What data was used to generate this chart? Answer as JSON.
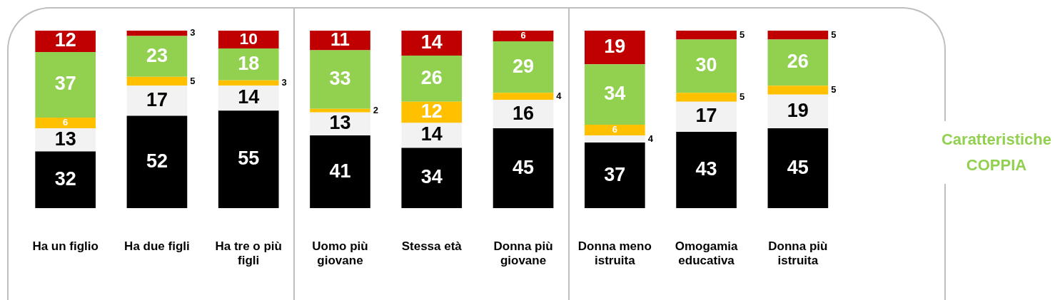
{
  "chart_data": {
    "type": "bar",
    "stacked": true,
    "title": "Caratteristiche COPPIA",
    "categories": [
      "Ha un figlio",
      "Ha due figli",
      "Ha tre o più figli",
      "Uomo più giovane",
      "Stessa età",
      "Donna più giovane",
      "Donna meno istruita",
      "Omogamia educativa",
      "Donna più istruita"
    ],
    "series": [
      {
        "color": "#000000",
        "values": [
          32,
          52,
          55,
          41,
          34,
          45,
          37,
          43,
          45
        ]
      },
      {
        "color": "#f2f2f2",
        "values": [
          13,
          17,
          14,
          13,
          14,
          16,
          4,
          17,
          19
        ]
      },
      {
        "color": "#ffc000",
        "values": [
          6,
          5,
          3,
          2,
          12,
          4,
          6,
          5,
          5
        ]
      },
      {
        "color": "#92d050",
        "values": [
          37,
          23,
          18,
          33,
          26,
          29,
          34,
          30,
          26
        ]
      },
      {
        "color": "#c00000",
        "values": [
          12,
          3,
          10,
          11,
          14,
          6,
          19,
          5,
          5
        ]
      }
    ],
    "ylim": [
      0,
      100
    ],
    "data_labels": true,
    "tick_labels": "x",
    "grid": false,
    "legend": false
  }
}
